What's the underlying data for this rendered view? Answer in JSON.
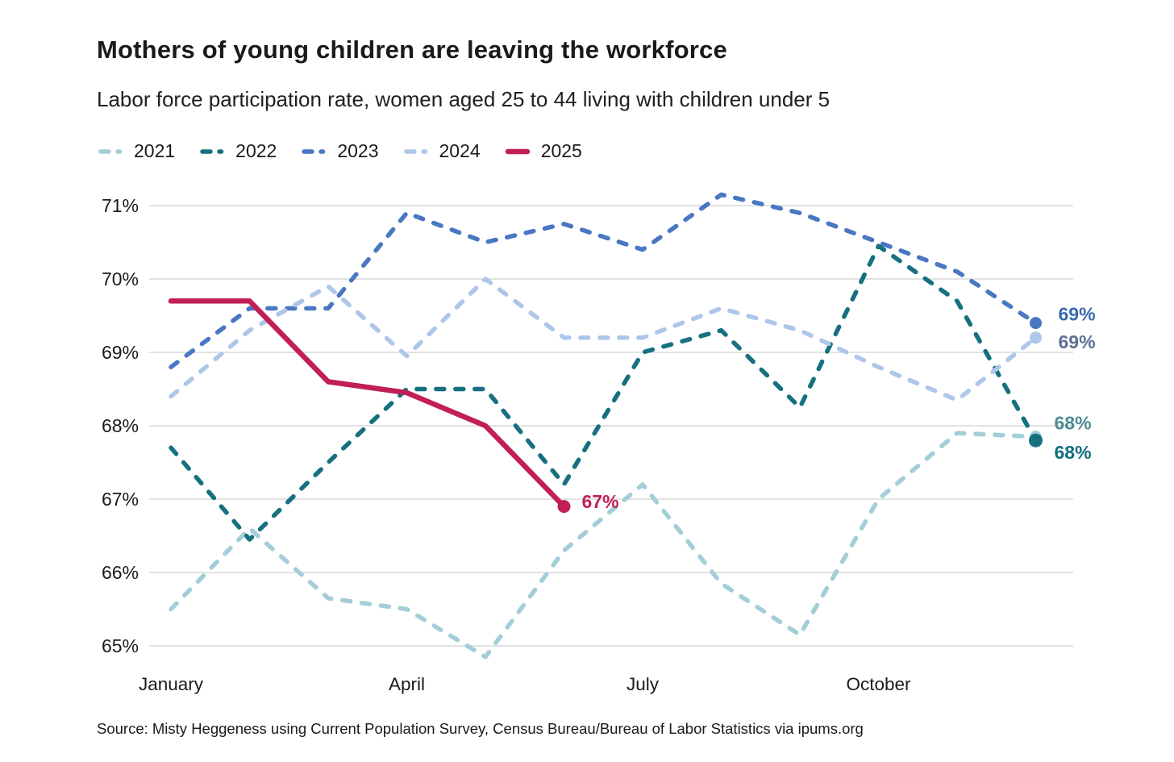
{
  "header": {
    "title": "Mothers of young children are leaving the workforce",
    "subtitle": "Labor force participation rate, women aged 25 to 44 living with children under 5"
  },
  "footer": {
    "source": "Source: Misty Heggeness using Current Population Survey, Census Bureau/Bureau of Labor Statistics via ipums.org"
  },
  "colors": {
    "background": "#ffffff",
    "grid": "#d9d9d9",
    "axis_text": "#1a1a1a"
  },
  "axes": {
    "y_ticks": [
      {
        "value": 71,
        "label": "71%"
      },
      {
        "value": 70,
        "label": "70%"
      },
      {
        "value": 69,
        "label": "69%"
      },
      {
        "value": 68,
        "label": "68%"
      },
      {
        "value": 67,
        "label": "67%"
      },
      {
        "value": 66,
        "label": "66%"
      },
      {
        "value": 65,
        "label": "65%"
      }
    ],
    "x_ticks": [
      {
        "month": 1,
        "label": "January"
      },
      {
        "month": 4,
        "label": "April"
      },
      {
        "month": 7,
        "label": "July"
      },
      {
        "month": 10,
        "label": "October"
      }
    ]
  },
  "chart_data": {
    "type": "line",
    "title": "Mothers of young children are leaving the workforce",
    "subtitle": "Labor force participation rate, women aged 25 to 44 living with children under 5",
    "x_unit": "month (January=1 ... December=12)",
    "ylabel": "Labor force participation rate (%)",
    "ylim": [
      65,
      71
    ],
    "grid": true,
    "legend_position": "top-left",
    "series": [
      {
        "name": "2021",
        "dashed": true,
        "color": "#a3ced7",
        "label_color": "#4e8a94",
        "values": [
          65.5,
          66.6,
          65.65,
          65.5,
          64.85,
          66.3,
          67.2,
          65.85,
          65.15,
          67.0,
          67.9,
          67.85
        ],
        "end_label": "68%"
      },
      {
        "name": "2022",
        "dashed": true,
        "color": "#16707f",
        "label_color": "#11707f",
        "values": [
          67.7,
          66.45,
          67.5,
          68.5,
          68.5,
          67.2,
          69.0,
          69.3,
          68.25,
          70.45,
          69.7,
          67.8
        ],
        "end_label": "68%"
      },
      {
        "name": "2023",
        "dashed": true,
        "color": "#4a77c3",
        "label_color": "#3a69b0",
        "values": [
          68.8,
          69.6,
          69.6,
          70.9,
          70.5,
          70.75,
          70.4,
          71.15,
          70.9,
          70.5,
          70.1,
          69.4
        ],
        "end_label": "69%"
      },
      {
        "name": "2024",
        "dashed": true,
        "color": "#aec6ea",
        "label_color": "#5c7093",
        "values": [
          68.4,
          69.3,
          69.9,
          68.95,
          70.0,
          69.2,
          69.2,
          69.6,
          69.3,
          68.8,
          68.35,
          69.2
        ],
        "end_label": "69%"
      },
      {
        "name": "2025",
        "dashed": false,
        "color": "#c11f56",
        "label_color": "#c11f56",
        "values": [
          69.7,
          69.7,
          68.6,
          68.45,
          68.0,
          66.9
        ],
        "end_label": "67%"
      }
    ]
  }
}
